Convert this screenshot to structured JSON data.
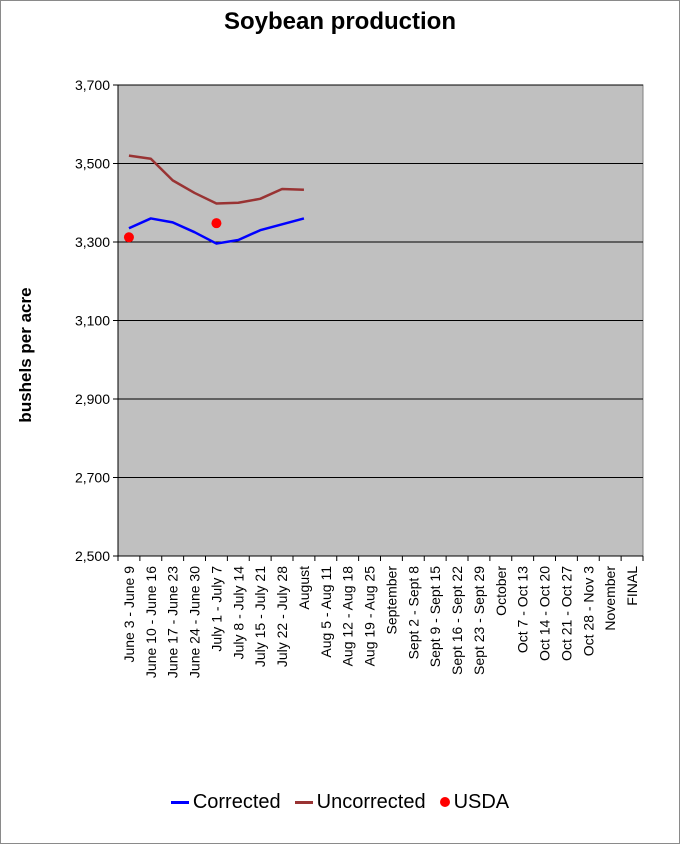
{
  "chart_data": {
    "type": "line",
    "title": "Soybean production",
    "xlabel": "",
    "ylabel": "bushels per acre",
    "ylim": [
      2500,
      3700
    ],
    "yticks": [
      "2,500",
      "2,700",
      "2,900",
      "3,100",
      "3,300",
      "3,500",
      "3,700"
    ],
    "ytick_values": [
      2500,
      2700,
      2900,
      3100,
      3300,
      3500,
      3700
    ],
    "grid": true,
    "legend_position": "bottom",
    "categories": [
      "June 3 - June 9",
      "June 10 - June 16",
      "June 17 - June 23",
      "June 24 - June 30",
      "July 1 - July 7",
      "July 8 - July 14",
      "July 15 - July 21",
      "July 22 - July 28",
      "August",
      "Aug 5 - Aug 11",
      "Aug 12 - Aug 18",
      "Aug 19 - Aug 25",
      "September",
      "Sept 2 - Sept 8",
      "Sept 9 - Sept 15",
      "Sept 16 - Sept 22",
      "Sept 23 - Sept 29",
      "October",
      "Oct 7 - Oct 13",
      "Oct 14 - Oct 20",
      "Oct 21 - Oct 27",
      "Oct 28 - Nov 3",
      "November",
      "FINAL"
    ],
    "series": [
      {
        "name": "Corrected",
        "kind": "line",
        "color": "#0000ff",
        "values": [
          3335,
          3360,
          3350,
          3325,
          3296,
          3305,
          3330,
          3345,
          3360,
          null,
          null,
          null,
          null,
          null,
          null,
          null,
          null,
          null,
          null,
          null,
          null,
          null,
          null,
          null
        ]
      },
      {
        "name": "Uncorrected",
        "kind": "line",
        "color": "#993333",
        "values": [
          3520,
          3512,
          3457,
          3425,
          3398,
          3400,
          3410,
          3435,
          3433,
          null,
          null,
          null,
          null,
          null,
          null,
          null,
          null,
          null,
          null,
          null,
          null,
          null,
          null,
          null
        ]
      },
      {
        "name": "USDA",
        "kind": "marker",
        "color": "#ff0000",
        "values": [
          3312,
          null,
          null,
          null,
          3348,
          null,
          null,
          null,
          null,
          null,
          null,
          null,
          null,
          null,
          null,
          null,
          null,
          null,
          null,
          null,
          null,
          null,
          null,
          null
        ]
      }
    ]
  }
}
